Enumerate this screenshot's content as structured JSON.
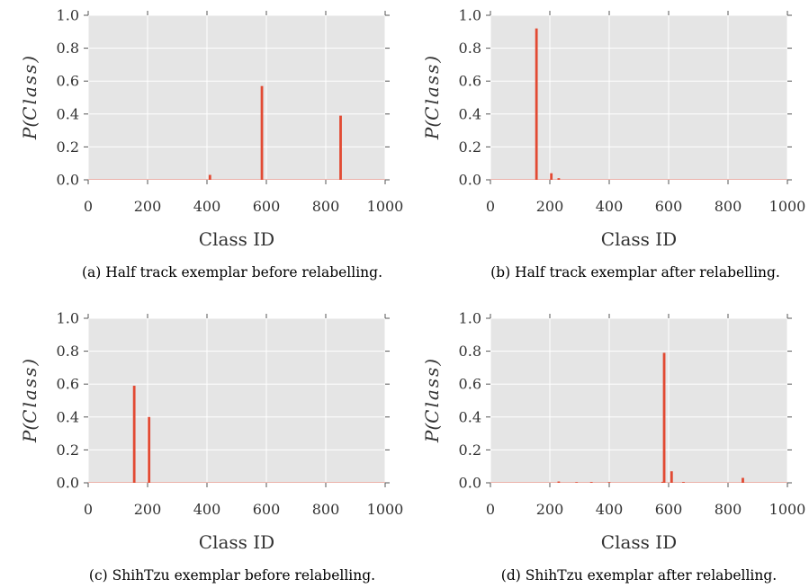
{
  "chart_data": [
    {
      "type": "bar",
      "panel": "a",
      "caption": "(a) Half track exemplar before relabelling.",
      "xlabel": "Class ID",
      "ylabel_prefix": "P(",
      "ylabel_var": "Class",
      "ylabel_suffix": ")",
      "xlim": [
        0,
        1000
      ],
      "ylim": [
        0,
        1
      ],
      "xticks": [
        0,
        200,
        400,
        600,
        800,
        1000
      ],
      "yticks": [
        0.0,
        0.2,
        0.4,
        0.6,
        0.8,
        1.0
      ],
      "ytick_labels": [
        "0.0",
        "0.2",
        "0.4",
        "0.6",
        "0.8",
        "1.0"
      ],
      "grid": true,
      "x": [
        410,
        585,
        850
      ],
      "values": [
        0.03,
        0.57,
        0.39
      ]
    },
    {
      "type": "bar",
      "panel": "b",
      "caption": "(b) Half track exemplar after relabelling.",
      "xlabel": "Class ID",
      "ylabel_prefix": "P(",
      "ylabel_var": "Class",
      "ylabel_suffix": ")",
      "xlim": [
        0,
        1000
      ],
      "ylim": [
        0,
        1
      ],
      "xticks": [
        0,
        200,
        400,
        600,
        800,
        1000
      ],
      "yticks": [
        0.0,
        0.2,
        0.4,
        0.6,
        0.8,
        1.0
      ],
      "ytick_labels": [
        "0.0",
        "0.2",
        "0.4",
        "0.6",
        "0.8",
        "1.0"
      ],
      "grid": true,
      "x": [
        155,
        205,
        230
      ],
      "values": [
        0.92,
        0.04,
        0.01
      ]
    },
    {
      "type": "bar",
      "panel": "c",
      "caption": "(c) ShihTzu exemplar before relabelling.",
      "xlabel": "Class ID",
      "ylabel_prefix": "P(",
      "ylabel_var": "Class",
      "ylabel_suffix": ")",
      "xlim": [
        0,
        1000
      ],
      "ylim": [
        0,
        1
      ],
      "xticks": [
        0,
        200,
        400,
        600,
        800,
        1000
      ],
      "yticks": [
        0.0,
        0.2,
        0.4,
        0.6,
        0.8,
        1.0
      ],
      "ytick_labels": [
        "0.0",
        "0.2",
        "0.4",
        "0.6",
        "0.8",
        "1.0"
      ],
      "grid": true,
      "x": [
        155,
        205
      ],
      "values": [
        0.59,
        0.4
      ]
    },
    {
      "type": "bar",
      "panel": "d",
      "caption": "(d) ShihTzu exemplar after relabelling.",
      "xlabel": "Class ID",
      "ylabel_prefix": "P(",
      "ylabel_var": "Class",
      "ylabel_suffix": ")",
      "xlim": [
        0,
        1000
      ],
      "ylim": [
        0,
        1
      ],
      "xticks": [
        0,
        200,
        400,
        600,
        800,
        1000
      ],
      "yticks": [
        0.0,
        0.2,
        0.4,
        0.6,
        0.8,
        1.0
      ],
      "ytick_labels": [
        "0.0",
        "0.2",
        "0.4",
        "0.6",
        "0.8",
        "1.0"
      ],
      "grid": true,
      "x": [
        230,
        290,
        340,
        400,
        580,
        585,
        610,
        650,
        850
      ],
      "values": [
        0.008,
        0.004,
        0.005,
        0.004,
        0.006,
        0.79,
        0.07,
        0.005,
        0.03
      ]
    }
  ],
  "colors": {
    "bar": "#e24a33",
    "plot_background": "#e5e5e5",
    "grid": "#ffffff",
    "text": "#333333"
  }
}
